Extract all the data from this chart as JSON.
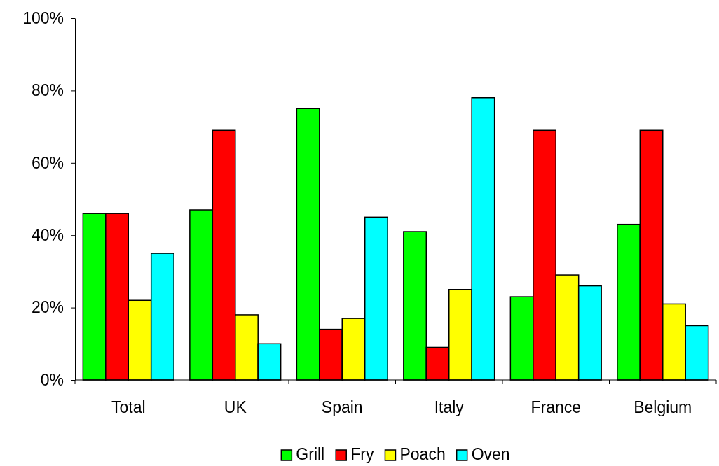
{
  "chart_data": {
    "type": "bar",
    "categories": [
      "Total",
      "UK",
      "Spain",
      "Italy",
      "France",
      "Belgium"
    ],
    "series": [
      {
        "name": "Grill",
        "color": "#00ff00",
        "values": [
          46,
          47,
          75,
          41,
          23,
          43
        ]
      },
      {
        "name": "Fry",
        "color": "#ff0000",
        "values": [
          46,
          69,
          14,
          9,
          69,
          69
        ]
      },
      {
        "name": "Poach",
        "color": "#ffff00",
        "values": [
          22,
          18,
          17,
          25,
          29,
          21
        ]
      },
      {
        "name": "Oven",
        "color": "#00ffff",
        "values": [
          35,
          10,
          45,
          78,
          26,
          15
        ]
      }
    ],
    "ylim": [
      0,
      100
    ],
    "yticks": [
      {
        "value": 0,
        "label": "0%"
      },
      {
        "value": 20,
        "label": "20%"
      },
      {
        "value": 40,
        "label": "40%"
      },
      {
        "value": 60,
        "label": "60%"
      },
      {
        "value": 80,
        "label": "80%"
      },
      {
        "value": 100,
        "label": "100%"
      }
    ],
    "grid": false,
    "legend": "bottom"
  }
}
